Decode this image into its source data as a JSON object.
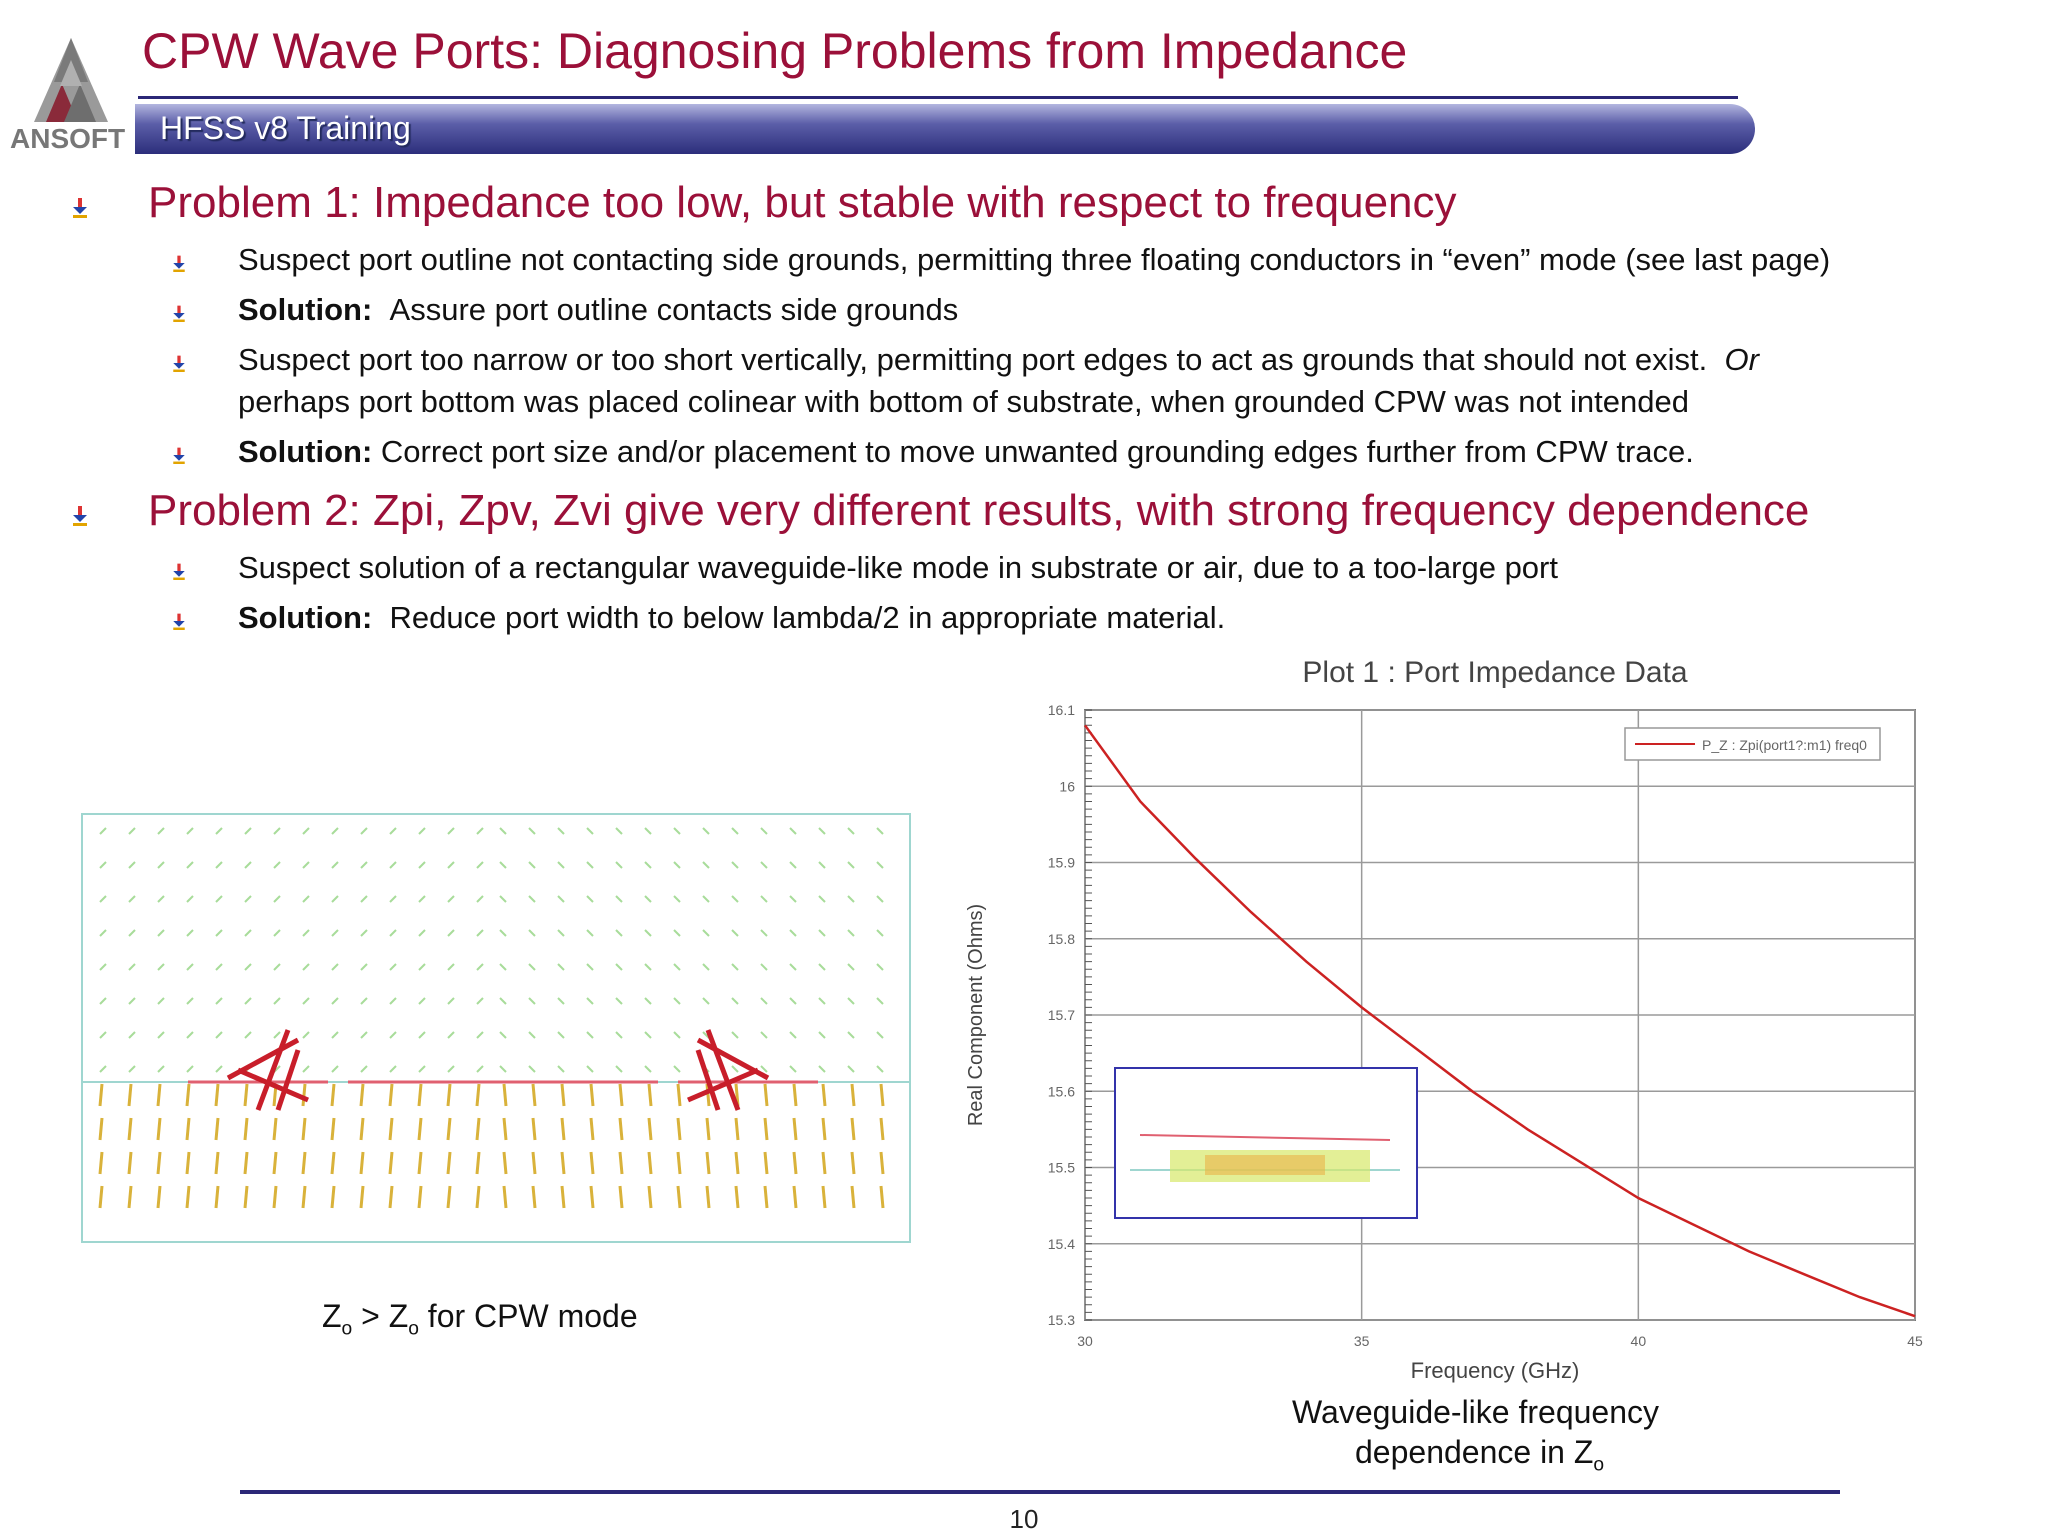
{
  "header": {
    "title": "CPW Wave Ports:  Diagnosing Problems from Impedance",
    "banner": "HFSS v8 Training",
    "logo_text": "ANSOFT"
  },
  "problem1": {
    "heading": "Problem 1: Impedance too low, but stable with respect to frequency",
    "b1": "Suspect port outline not contacting side grounds, permitting three floating conductors in “even” mode (see last page)",
    "b2_label": "Solution:",
    "b2_text": "Assure port outline contacts side grounds",
    "b3_line1": "Suspect port too narrow or too short vertically, permitting port edges to act as grounds that should not exist.",
    "b3_or": "Or",
    "b3_line2": "perhaps port bottom was placed colinear with bottom of substrate, when grounded CPW was not intended",
    "b4_label": "Solution:",
    "b4_text": "Correct port size and/or placement to move unwanted grounding edges further from CPW trace."
  },
  "problem2": {
    "heading": "Problem 2:  Zpi, Zpv, Zvi give very different results, with strong frequency dependence",
    "b1": "Suspect solution of a rectangular waveguide-like mode in substrate or air, due to a too-large port",
    "b2_label": "Solution:",
    "b2_text": "Reduce port width to below lambda/2 in appropriate material."
  },
  "captions": {
    "left_z1": "Z",
    "left_sub1": "o",
    "left_mid": " > Z",
    "left_sub2": "o",
    "left_tail": " for CPW mode",
    "right_line1": "Waveguide-like frequency",
    "right_line2": "dependence in Z",
    "right_sub": "o"
  },
  "chart_data": {
    "type": "line",
    "title": "Plot 1 : Port Impedance Data",
    "xlabel": "Frequency (GHz)",
    "ylabel": "Real Component (Ohms)",
    "xlim": [
      30,
      45
    ],
    "ylim": [
      15.3,
      16.1
    ],
    "x_ticks": [
      "30",
      "35",
      "40",
      "45"
    ],
    "y_ticks": [
      "16.1",
      "16",
      "15.9",
      "15.8",
      "15.7",
      "15.6",
      "15.5",
      "15.4",
      "15.3"
    ],
    "legend": "P_Z : Zpi(port1?:m1) freq0",
    "legend_position": "top-right",
    "grid": true,
    "series": [
      {
        "name": "P_Z : Zpi(port1?:m1) freq0",
        "color": "#cc2222",
        "x": [
          30,
          31,
          32,
          33,
          34,
          35,
          36,
          37,
          38,
          39,
          40,
          41,
          42,
          43,
          44,
          45
        ],
        "y": [
          16.08,
          15.98,
          15.905,
          15.835,
          15.77,
          15.71,
          15.655,
          15.6,
          15.55,
          15.505,
          15.46,
          15.425,
          15.39,
          15.36,
          15.33,
          15.305
        ]
      }
    ]
  },
  "page_number": "10"
}
